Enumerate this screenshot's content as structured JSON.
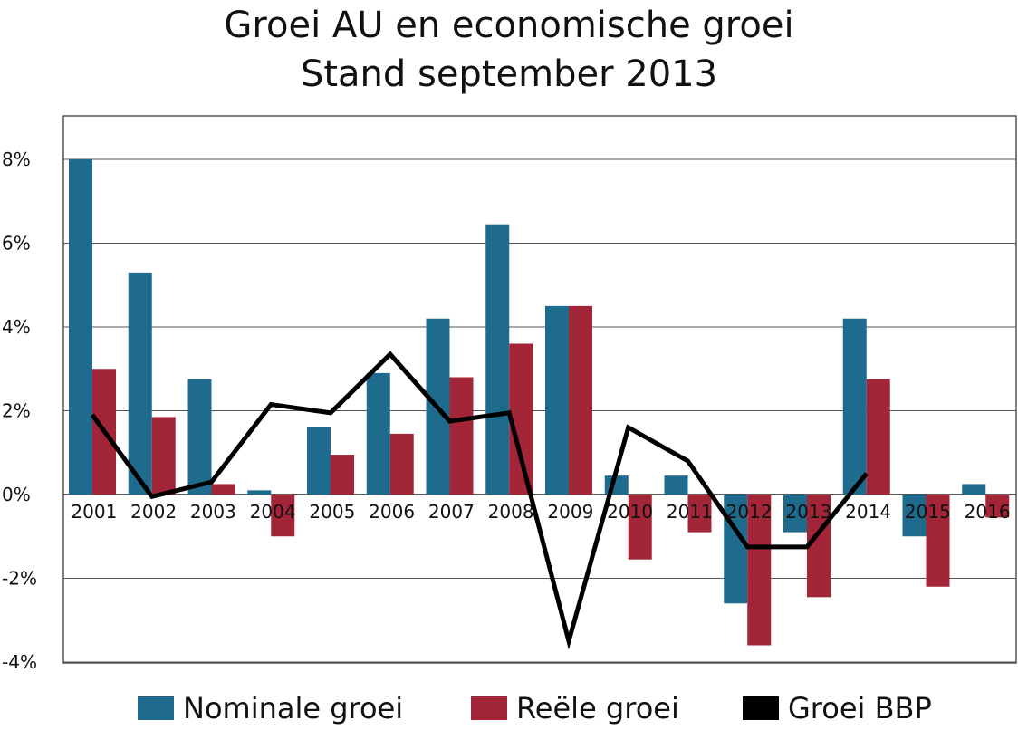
{
  "title_line1": "Groei AU en economische groei",
  "title_line2": "Stand september 2013",
  "colors": {
    "nominale": "#1f6b8e",
    "reele": "#a32638",
    "bbp": "#000000",
    "grid": "#555555",
    "frame": "#555555"
  },
  "legend": [
    {
      "key": "nominale",
      "label": "Nominale groei"
    },
    {
      "key": "reele",
      "label": "Reële groei"
    },
    {
      "key": "bbp",
      "label": "Groei BBP"
    }
  ],
  "chart_data": {
    "type": "bar",
    "title": "Groei AU en economische groei\nStand september 2013",
    "categories": [
      "2001",
      "2002",
      "2003",
      "2004",
      "2005",
      "2006",
      "2007",
      "2008",
      "2009",
      "2010",
      "2011",
      "2012",
      "2013",
      "2014",
      "2015",
      "2016"
    ],
    "series": [
      {
        "name": "Nominale groei",
        "type": "bar",
        "values": [
          8.0,
          5.3,
          2.75,
          0.1,
          1.6,
          2.9,
          4.2,
          6.45,
          4.5,
          0.45,
          0.45,
          -2.6,
          -0.9,
          4.2,
          -1.0,
          0.25
        ]
      },
      {
        "name": "Reële groei",
        "type": "bar",
        "values": [
          3.0,
          1.85,
          0.25,
          -1.0,
          0.95,
          1.45,
          2.8,
          3.6,
          4.5,
          -1.55,
          -0.9,
          -3.6,
          -2.45,
          2.75,
          -2.2,
          -0.55
        ]
      },
      {
        "name": "Groei BBP",
        "type": "line",
        "values": [
          1.9,
          -0.05,
          0.3,
          2.15,
          1.95,
          3.35,
          1.75,
          1.95,
          -3.5,
          1.6,
          0.8,
          -1.25,
          -1.25,
          0.5,
          null,
          null
        ]
      }
    ],
    "yticks": [
      "8%",
      "6%",
      "4%",
      "2%",
      "0%",
      "-2%",
      "-4%"
    ],
    "ylim": [
      -4,
      9
    ],
    "grid": true,
    "legend_position": "bottom"
  }
}
